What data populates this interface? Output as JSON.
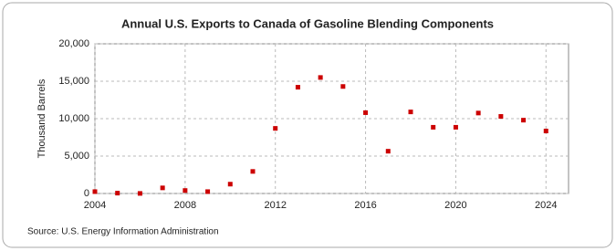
{
  "chart_data": {
    "type": "scatter",
    "title": "Annual U.S. Exports to Canada of Gasoline Blending Components",
    "y_label": "Thousand Barrels",
    "source": "Source: U.S. Energy Information Administration",
    "x": [
      2004,
      2005,
      2006,
      2007,
      2008,
      2009,
      2010,
      2011,
      2012,
      2013,
      2014,
      2015,
      2016,
      2017,
      2018,
      2019,
      2020,
      2021,
      2022,
      2023,
      2024
    ],
    "values": [
      250,
      50,
      10,
      750,
      400,
      250,
      1250,
      2950,
      8700,
      14200,
      15500,
      14300,
      10800,
      5650,
      10900,
      8850,
      8850,
      10750,
      10300,
      9800,
      8350
    ],
    "color": "#cc0000",
    "xlim": [
      2004,
      2025
    ],
    "xticks": [
      2004,
      2008,
      2012,
      2016,
      2020,
      2024
    ],
    "ylim": [
      0,
      20000
    ],
    "yticks": [
      0,
      {
        "value": 5000,
        "label": "5,000"
      },
      {
        "value": 10000,
        "label": "10,000"
      },
      {
        "value": 15000,
        "label": "15,000"
      },
      {
        "value": 20000,
        "label": "20,000"
      }
    ],
    "grid": true
  }
}
